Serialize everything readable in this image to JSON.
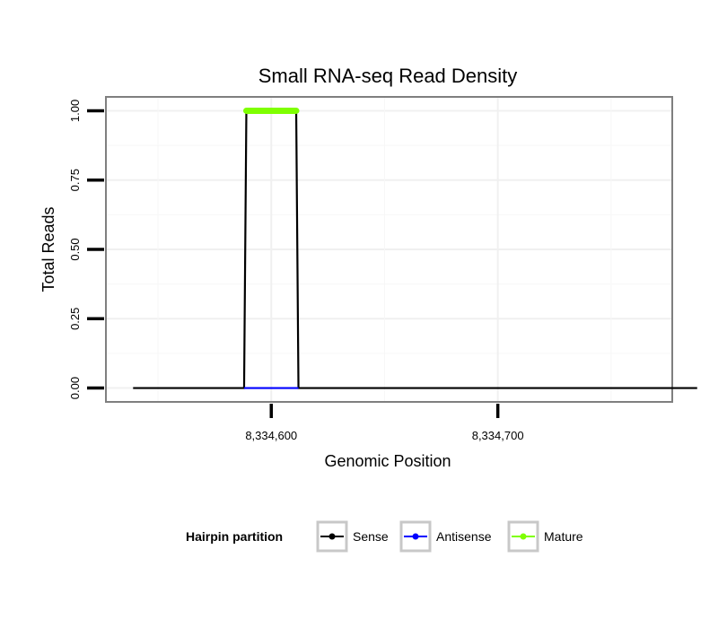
{
  "chart_data": {
    "type": "line",
    "title": "Small RNA-seq Read Density",
    "xlabel": "Genomic Position",
    "ylabel": "Total Reads",
    "xlim": [
      8334527,
      8334777
    ],
    "ylim": [
      -0.05,
      1.05
    ],
    "x_ticks": [
      8334600,
      8334700
    ],
    "x_tick_labels": [
      "8,334,600",
      "8,334,700"
    ],
    "y_ticks": [
      0,
      0.25,
      0.5,
      0.75,
      1.0
    ],
    "y_tick_labels": [
      "0.00",
      "0.25",
      "0.50",
      "0.75",
      "1.00"
    ],
    "grid": true,
    "legend": {
      "title": "Hairpin partition",
      "position": "bottom",
      "entries": [
        "Sense",
        "Antisense",
        "Mature"
      ]
    },
    "series": [
      {
        "name": "Sense",
        "color": "#000000",
        "x": [
          8334539,
          8334588,
          8334589,
          8334611,
          8334612,
          8334788
        ],
        "y": [
          0,
          0,
          1,
          1,
          0,
          0
        ]
      },
      {
        "name": "Antisense",
        "color": "#0000ff",
        "x": [
          8334588,
          8334612
        ],
        "y": [
          0,
          0
        ]
      },
      {
        "name": "Mature",
        "color": "#7fff00",
        "x": [
          8334589,
          8334611
        ],
        "y": [
          1,
          1
        ]
      }
    ]
  }
}
